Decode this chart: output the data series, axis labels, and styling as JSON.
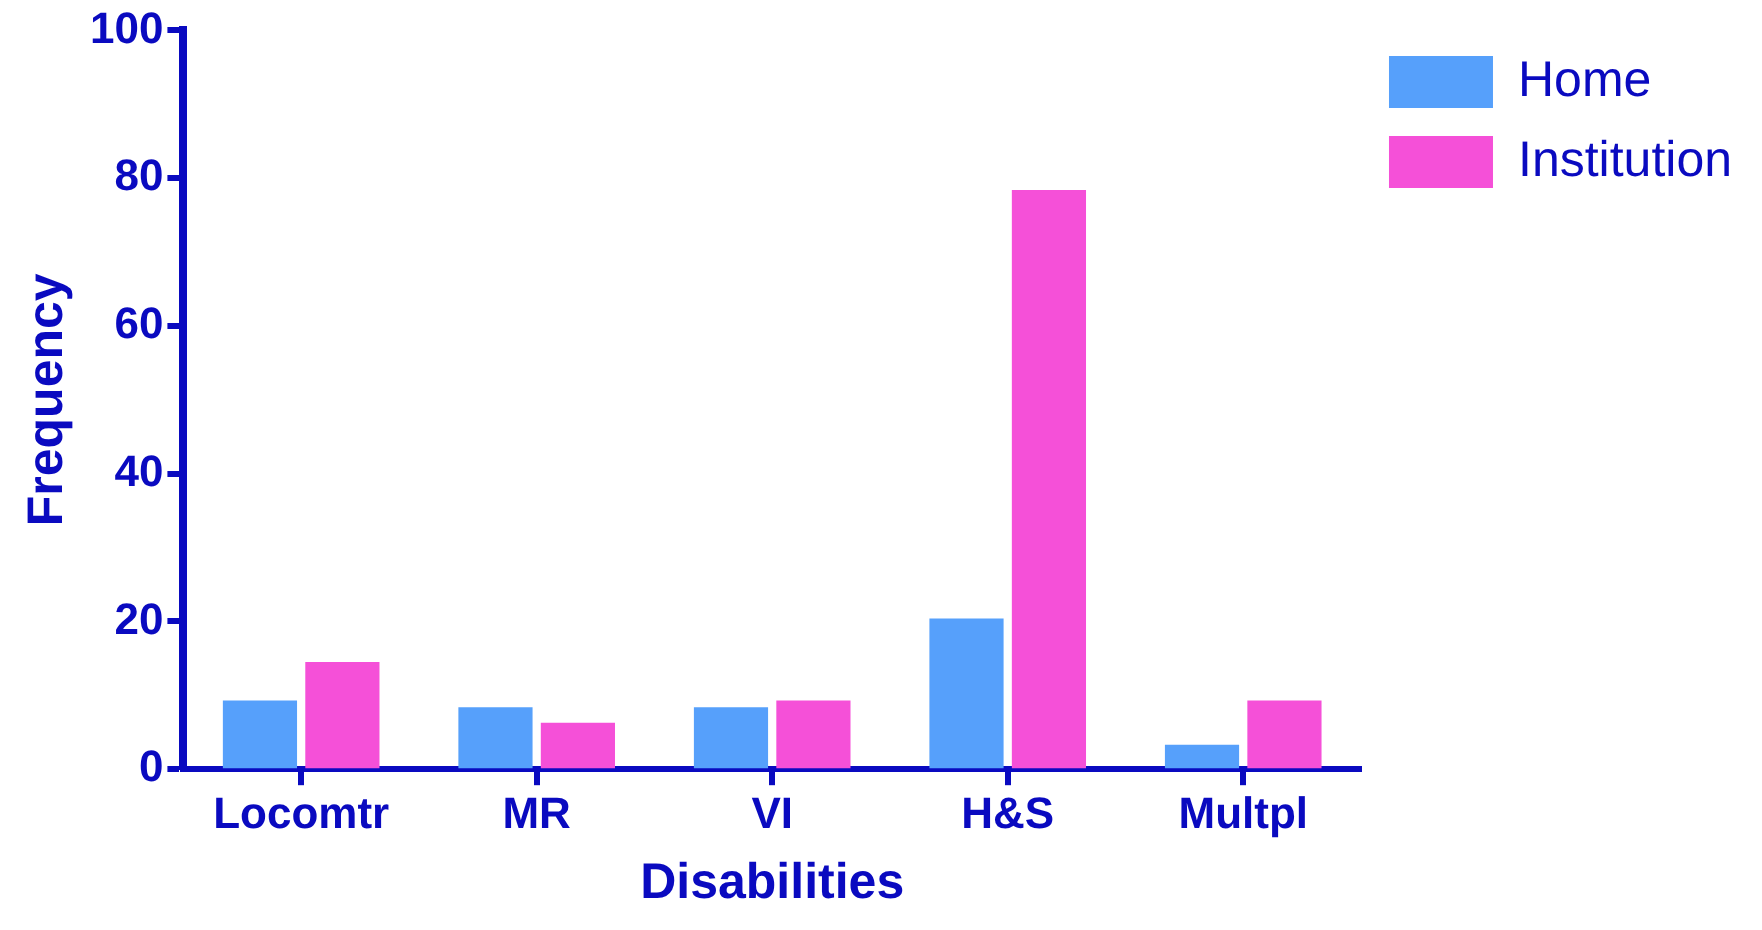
{
  "chart_data": {
    "type": "bar",
    "xlabel": "Disabilities",
    "ylabel": "Frequency",
    "categories": [
      "Locomtr",
      "MR",
      "VI",
      "H&S",
      "Multpl"
    ],
    "series": [
      {
        "name": "Home",
        "color": "#56a0fb",
        "values": [
          9.3,
          8.4,
          8.4,
          20.4,
          3.3
        ]
      },
      {
        "name": "Institution",
        "color": "#f550d8",
        "values": [
          14.5,
          6.3,
          9.3,
          78.4,
          9.3
        ]
      }
    ],
    "ylim": [
      0,
      100
    ],
    "yticks": [
      0,
      20,
      40,
      60,
      80,
      100
    ],
    "grid": false,
    "legend": "top right"
  }
}
